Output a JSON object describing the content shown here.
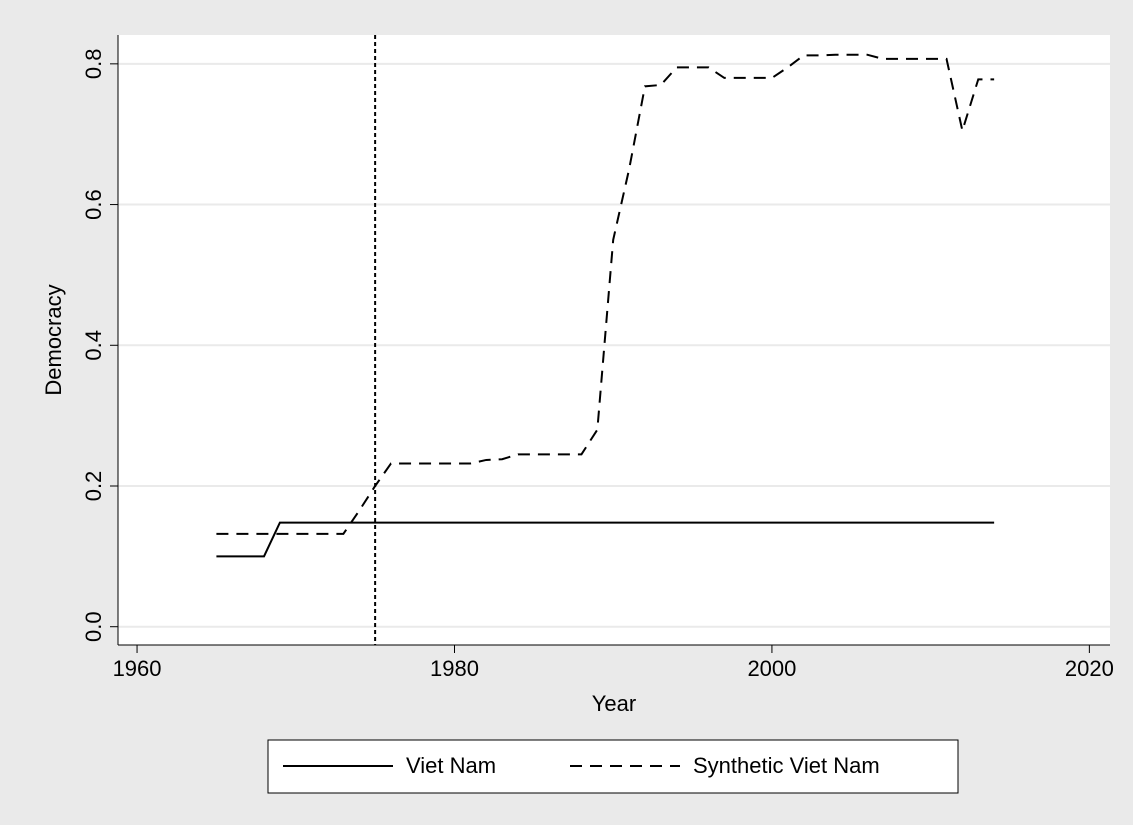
{
  "chart_data": {
    "type": "line",
    "x_label": "Year",
    "y_label": "Democracy",
    "x": [
      1965,
      1966,
      1967,
      1968,
      1969,
      1970,
      1971,
      1972,
      1973,
      1974,
      1975,
      1976,
      1977,
      1978,
      1979,
      1980,
      1981,
      1982,
      1983,
      1984,
      1985,
      1986,
      1987,
      1988,
      1989,
      1990,
      1991,
      1992,
      1993,
      1994,
      1995,
      1996,
      1997,
      1998,
      1999,
      2000,
      2001,
      2002,
      2003,
      2004,
      2005,
      2006,
      2007,
      2008,
      2009,
      2010,
      2011,
      2012,
      2013,
      2014
    ],
    "series": [
      {
        "name": "Viet Nam",
        "color": "#000000",
        "style": "solid",
        "values": [
          0.1,
          0.1,
          0.1,
          0.1,
          0.148,
          0.148,
          0.148,
          0.148,
          0.148,
          0.148,
          0.148,
          0.148,
          0.148,
          0.148,
          0.148,
          0.148,
          0.148,
          0.148,
          0.148,
          0.148,
          0.148,
          0.148,
          0.148,
          0.148,
          0.148,
          0.148,
          0.148,
          0.148,
          0.148,
          0.148,
          0.148,
          0.148,
          0.148,
          0.148,
          0.148,
          0.148,
          0.148,
          0.148,
          0.148,
          0.148,
          0.148,
          0.148,
          0.148,
          0.148,
          0.148,
          0.148,
          0.148,
          0.148,
          0.148,
          0.148
        ]
      },
      {
        "name": "Synthetic Viet Nam",
        "color": "#000000",
        "style": "dashed",
        "values": [
          0.132,
          0.132,
          0.132,
          0.132,
          0.132,
          0.132,
          0.132,
          0.132,
          0.132,
          0.165,
          0.2,
          0.232,
          0.232,
          0.232,
          0.232,
          0.232,
          0.232,
          0.237,
          0.238,
          0.245,
          0.245,
          0.245,
          0.245,
          0.245,
          0.28,
          0.55,
          0.65,
          0.768,
          0.77,
          0.795,
          0.795,
          0.795,
          0.78,
          0.78,
          0.78,
          0.78,
          0.795,
          0.812,
          0.812,
          0.813,
          0.813,
          0.813,
          0.807,
          0.807,
          0.807,
          0.807,
          0.807,
          0.705,
          0.778,
          0.778
        ]
      }
    ],
    "vline": 1975,
    "xlim": [
      1958.8,
      2021.3
    ],
    "ylim": [
      -0.026,
      0.841
    ],
    "xticks": [
      1960,
      1980,
      2000,
      2020
    ],
    "yticks": [
      {
        "value": 0,
        "label": "0.0"
      },
      0.2,
      0.4,
      0.6,
      0.8
    ],
    "grid": true
  }
}
